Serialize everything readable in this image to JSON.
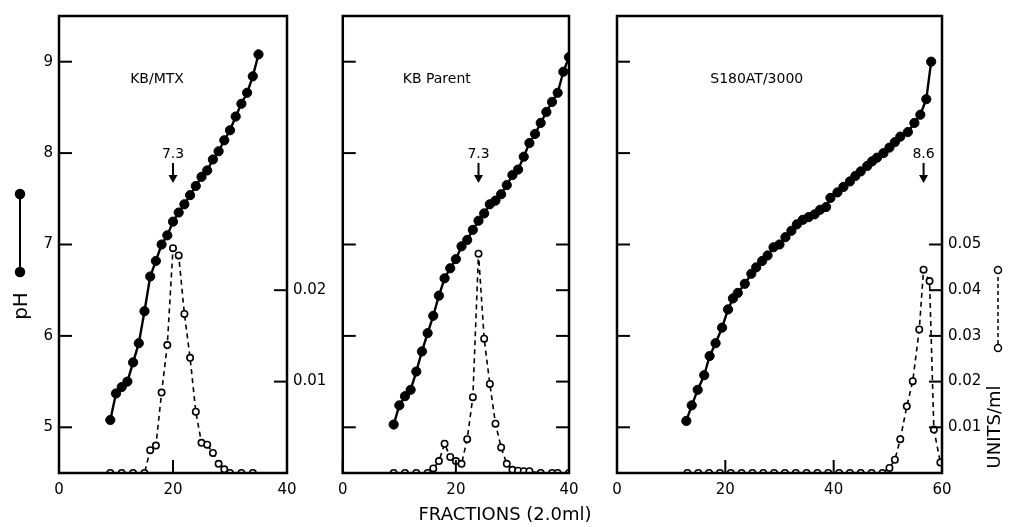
{
  "chart_data": [
    {
      "type": "line",
      "title": "KB/MTX",
      "ylabel": "pH",
      "xlim": [
        0,
        40
      ],
      "xticks": [
        0,
        20,
        40
      ],
      "ylim": [
        4.5,
        9.5
      ],
      "yticks": [
        5,
        6,
        7,
        8,
        9
      ],
      "y2lim": [
        0,
        0.05
      ],
      "y2ticks": [
        0.01,
        0.02
      ],
      "marker": "circle",
      "annotations": [
        "7.3"
      ],
      "series": [
        {
          "color": "#000000",
          "line_style": "solid",
          "x": [
            9,
            10,
            11,
            12,
            13,
            14,
            15,
            16,
            17,
            18,
            19,
            20,
            21,
            22,
            23,
            24,
            25,
            26,
            27,
            28,
            29,
            30,
            31,
            32,
            33,
            34,
            35
          ],
          "values": [
            5.08,
            5.37,
            5.44,
            5.5,
            5.71,
            5.92,
            6.27,
            6.65,
            6.82,
            7.0,
            7.1,
            7.25,
            7.35,
            7.44,
            7.54,
            7.64,
            7.74,
            7.81,
            7.93,
            8.02,
            8.14,
            8.25,
            8.4,
            8.54,
            8.66,
            8.84,
            9.08
          ]
        },
        {
          "color": "#000000",
          "line_style": "dashed",
          "axis": "y2",
          "x": [
            9,
            11,
            13,
            15,
            16,
            17,
            18,
            19,
            20,
            21,
            22,
            23,
            24,
            25,
            26,
            27,
            28,
            29,
            30,
            32,
            34
          ],
          "values": [
            0,
            0,
            0,
            0,
            0.0025,
            0.003,
            0.0088,
            0.014,
            0.0246,
            0.0238,
            0.0174,
            0.0126,
            0.0067,
            0.0033,
            0.0031,
            0.0022,
            0.001,
            0.0004,
            0,
            0,
            0
          ]
        }
      ]
    },
    {
      "type": "line",
      "title": "KB Parent",
      "xlabel": "FRACTIONS (2.0ml)",
      "tick_labels": "x",
      "xlim": [
        0,
        40
      ],
      "xticks": [
        0,
        20,
        40
      ],
      "ylim": [
        4.5,
        9.5
      ],
      "yticks": [
        5,
        6,
        7,
        8,
        9
      ],
      "y2lim": [
        0,
        0.1
      ],
      "y2ticks": [
        0.01,
        0.02,
        0.03,
        0.04,
        0.05
      ],
      "marker": "circle",
      "annotations": [
        "7.3"
      ],
      "series": [
        {
          "color": "#000000",
          "line_style": "solid",
          "x": [
            9,
            10,
            11,
            12,
            13,
            14,
            15,
            16,
            17,
            18,
            19,
            20,
            21,
            22,
            23,
            24,
            25,
            26,
            27,
            28,
            29,
            30,
            31,
            32,
            33,
            34,
            35,
            36,
            37,
            38,
            39,
            40
          ],
          "values": [
            5.03,
            5.24,
            5.34,
            5.41,
            5.61,
            5.83,
            6.03,
            6.22,
            6.44,
            6.63,
            6.74,
            6.84,
            6.98,
            7.05,
            7.16,
            7.26,
            7.34,
            7.44,
            7.48,
            7.55,
            7.65,
            7.76,
            7.82,
            7.96,
            8.11,
            8.21,
            8.33,
            8.45,
            8.56,
            8.66,
            8.89,
            9.05
          ]
        },
        {
          "color": "#000000",
          "line_style": "dashed",
          "axis": "y2",
          "x": [
            9,
            11,
            13,
            15,
            16,
            17,
            18,
            19,
            20,
            21,
            22,
            23,
            24,
            25,
            26,
            27,
            28,
            29,
            30,
            31,
            32,
            33,
            35,
            37,
            38,
            40
          ],
          "values": [
            0,
            0,
            0,
            0,
            0.001,
            0.0026,
            0.0064,
            0.0035,
            0.0026,
            0.002,
            0.0074,
            0.0166,
            0.048,
            0.0294,
            0.0195,
            0.0108,
            0.0056,
            0.002,
            0.0007,
            0.0005,
            0.0004,
            0.0004,
            0,
            0,
            0,
            0
          ]
        }
      ]
    },
    {
      "type": "line",
      "title": "S180AT/3000",
      "y2label": "UNITS/ml",
      "xlim": [
        0,
        60
      ],
      "xticks": [
        0,
        20,
        40,
        60
      ],
      "ylim": [
        4.5,
        9.5
      ],
      "tick_labels": "xy2",
      "y2lim": [
        0,
        0.1
      ],
      "y2ticks": [
        0.01,
        0.02,
        0.03,
        0.04,
        0.05
      ],
      "marker": "circle",
      "annotations": [
        "8.6"
      ],
      "series": [
        {
          "color": "#000000",
          "line_style": "solid",
          "x": [
            12.8,
            13.8,
            14.9,
            16.1,
            17.1,
            18.2,
            19.4,
            20.5,
            21.4,
            22.3,
            23.6,
            24.8,
            25.7,
            26.8,
            27.8,
            28.9,
            30.0,
            31.1,
            32.2,
            33.2,
            34.3,
            35.4,
            36.5,
            37.5,
            38.6,
            39.4,
            40.7,
            41.8,
            43.0,
            44.0,
            45.0,
            46.2,
            47.1,
            48.0,
            49.2,
            50.3,
            51.3,
            52.3,
            53.7,
            54.9,
            56.0,
            57.1,
            58.0
          ],
          "values": [
            5.07,
            5.24,
            5.41,
            5.57,
            5.78,
            5.92,
            6.09,
            6.29,
            6.41,
            6.47,
            6.57,
            6.68,
            6.75,
            6.82,
            6.88,
            6.97,
            7.0,
            7.08,
            7.15,
            7.22,
            7.27,
            7.3,
            7.33,
            7.38,
            7.41,
            7.51,
            7.57,
            7.63,
            7.69,
            7.75,
            7.8,
            7.86,
            7.91,
            7.95,
            8.0,
            8.06,
            8.12,
            8.18,
            8.23,
            8.33,
            8.42,
            8.59,
            9.0
          ]
        },
        {
          "color": "#000000",
          "line_style": "dashed",
          "axis": "y2",
          "x": [
            13,
            15,
            17,
            19,
            21,
            23,
            25,
            27,
            29,
            31,
            33,
            35,
            37,
            39,
            41,
            43,
            45,
            47,
            49,
            50.3,
            51.3,
            52.3,
            53.5,
            54.6,
            55.8,
            56.6,
            57.7,
            58.5,
            59.7
          ],
          "values": [
            0,
            0,
            0,
            0,
            0,
            0,
            0,
            0,
            0,
            0,
            0,
            0,
            0,
            0,
            0,
            0,
            0,
            0,
            0,
            0.0011,
            0.0029,
            0.0074,
            0.0146,
            0.0201,
            0.0314,
            0.0445,
            0.042,
            0.0095,
            0.0023
          ]
        }
      ]
    }
  ]
}
